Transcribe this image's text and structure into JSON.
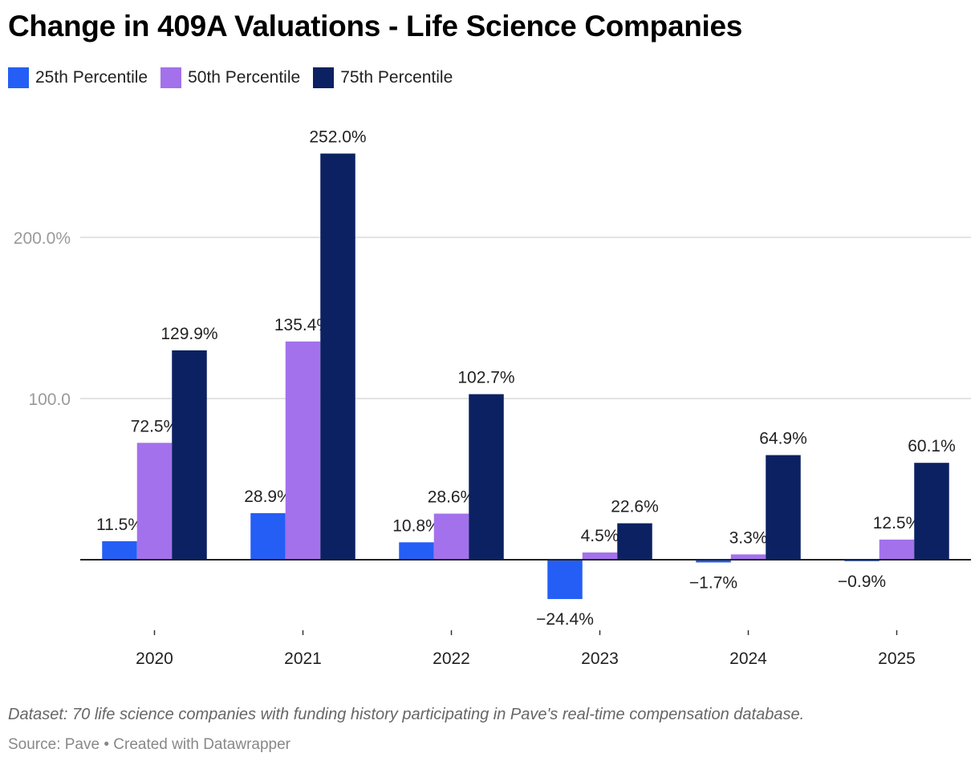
{
  "title": "Change in 409A Valuations - Life Science Companies",
  "notes": "Dataset: 70 life science companies with funding history participating in Pave's real-time compensation database.",
  "source": "Source: Pave • Created with Datawrapper",
  "chart_data": {
    "type": "bar",
    "title": "Change in 409A Valuations - Life Science Companies",
    "categories": [
      "2020",
      "2021",
      "2022",
      "2023",
      "2024",
      "2025"
    ],
    "series": [
      {
        "name": "25th Percentile",
        "color": "#245ef5",
        "values": [
          11.5,
          28.9,
          10.8,
          -24.4,
          -1.7,
          -0.9
        ],
        "labels": [
          "11.5%",
          "28.9%",
          "10.8%",
          "−24.4%",
          "−1.7%",
          "−0.9%"
        ]
      },
      {
        "name": "50th Percentile",
        "color": "#a371ec",
        "values": [
          72.5,
          135.4,
          28.6,
          4.5,
          3.3,
          12.5
        ],
        "labels": [
          "72.5%",
          "135.4%",
          "28.6%",
          "4.5%",
          "3.3%",
          "12.5%"
        ]
      },
      {
        "name": "75th Percentile",
        "color": "#0b2162",
        "values": [
          129.9,
          252.0,
          102.7,
          22.6,
          64.9,
          60.1
        ],
        "labels": [
          "129.9%",
          "252.0%",
          "102.7%",
          "22.6%",
          "64.9%",
          "60.1%"
        ]
      }
    ],
    "y_ticks": [
      {
        "value": 100,
        "label": "100.0"
      },
      {
        "value": 200,
        "label": "200.0%"
      }
    ],
    "ylim": [
      -45,
      260
    ],
    "grid": true,
    "legend": "top-left"
  }
}
